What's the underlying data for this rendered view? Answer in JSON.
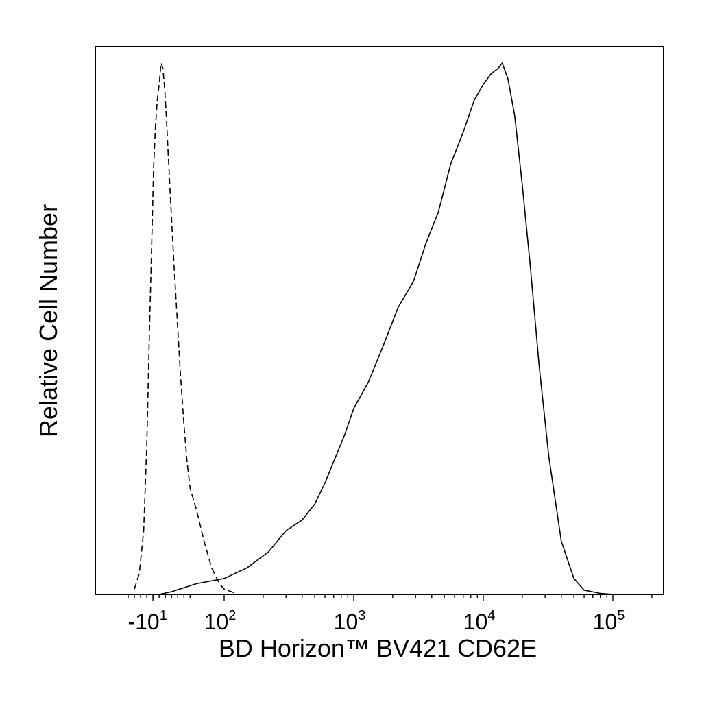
{
  "chart_data": {
    "type": "line",
    "title": "",
    "xlabel": "BD Horizon™ BV421 CD62E",
    "ylabel": "Relative Cell Number",
    "x_scale": "biexponential",
    "x_ticks": [
      {
        "value": -10,
        "base": "-10",
        "exp": "1"
      },
      {
        "value": 100,
        "base": "10",
        "exp": "2"
      },
      {
        "value": 1000,
        "base": "10",
        "exp": "3"
      },
      {
        "value": 10000,
        "base": "10",
        "exp": "4"
      },
      {
        "value": 100000,
        "base": "10",
        "exp": "5"
      }
    ],
    "xlim": [
      -60,
      250000
    ],
    "ylim": [
      0,
      100
    ],
    "grid": false,
    "legend": "none",
    "series": [
      {
        "style": "dashed",
        "color": "#000000",
        "points": [
          [
            -40,
            1
          ],
          [
            -32,
            4
          ],
          [
            -25,
            12
          ],
          [
            -20,
            28
          ],
          [
            -16,
            48
          ],
          [
            -12,
            66
          ],
          [
            -9,
            80
          ],
          [
            -6,
            88
          ],
          [
            -3,
            93
          ],
          [
            0,
            96
          ],
          [
            3,
            100
          ],
          [
            6,
            99
          ],
          [
            9,
            95
          ],
          [
            12,
            89
          ],
          [
            15,
            82
          ],
          [
            19,
            73
          ],
          [
            24,
            62
          ],
          [
            29,
            52
          ],
          [
            34,
            42
          ],
          [
            40,
            32
          ],
          [
            45,
            25
          ],
          [
            50,
            20
          ],
          [
            60,
            16
          ],
          [
            70,
            10
          ],
          [
            80,
            5
          ],
          [
            92,
            2
          ],
          [
            100,
            1
          ],
          [
            120,
            0.3
          ]
        ]
      },
      {
        "style": "solid",
        "color": "#000000",
        "points": [
          [
            0,
            0
          ],
          [
            20,
            0.5
          ],
          [
            60,
            2
          ],
          [
            100,
            3
          ],
          [
            150,
            5
          ],
          [
            220,
            8
          ],
          [
            300,
            12
          ],
          [
            400,
            14
          ],
          [
            500,
            17
          ],
          [
            600,
            21
          ],
          [
            700,
            25
          ],
          [
            850,
            30
          ],
          [
            1000,
            35
          ],
          [
            1300,
            40
          ],
          [
            1700,
            47
          ],
          [
            2200,
            54
          ],
          [
            2900,
            59
          ],
          [
            3600,
            66
          ],
          [
            4500,
            72
          ],
          [
            5600,
            81
          ],
          [
            7000,
            87
          ],
          [
            8500,
            93
          ],
          [
            10000,
            96
          ],
          [
            11500,
            98
          ],
          [
            13000,
            99
          ],
          [
            14000,
            100
          ],
          [
            15500,
            97
          ],
          [
            17500,
            90
          ],
          [
            20000,
            77
          ],
          [
            23000,
            62
          ],
          [
            27000,
            43
          ],
          [
            32000,
            26
          ],
          [
            40000,
            10
          ],
          [
            50000,
            3
          ],
          [
            60000,
            0.8
          ],
          [
            80000,
            0.2
          ],
          [
            100000,
            0
          ]
        ]
      }
    ]
  }
}
